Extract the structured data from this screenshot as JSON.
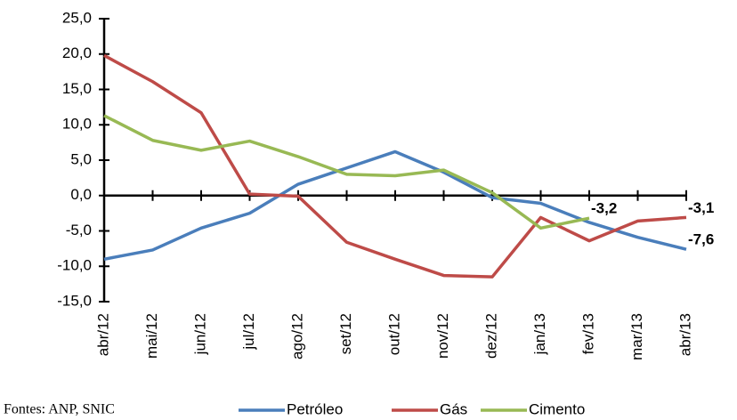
{
  "chart_data": {
    "type": "line",
    "categories": [
      "abr/12",
      "mai/12",
      "jun/12",
      "jul/12",
      "ago/12",
      "set/12",
      "out/12",
      "nov/12",
      "dez/12",
      "jan/13",
      "fev/13",
      "mar/13",
      "abr/13"
    ],
    "series": [
      {
        "name": "Petróleo",
        "color": "#4a7ebb",
        "values": [
          -9.0,
          -7.7,
          -4.6,
          -2.5,
          1.6,
          3.9,
          6.2,
          3.3,
          -0.3,
          -1.1,
          -3.8,
          -5.9,
          -7.6
        ],
        "value_labels": [
          null,
          null,
          null,
          null,
          null,
          null,
          null,
          null,
          null,
          null,
          null,
          null,
          "-7,6"
        ]
      },
      {
        "name": "Gás",
        "color": "#be4b48",
        "values": [
          19.8,
          16.1,
          11.7,
          0.2,
          -0.1,
          -6.6,
          -9.0,
          -11.3,
          -11.5,
          -3.1,
          -6.4,
          -3.6,
          -3.1
        ],
        "value_labels": [
          null,
          null,
          null,
          null,
          null,
          null,
          null,
          null,
          null,
          null,
          null,
          null,
          "-3,1"
        ]
      },
      {
        "name": "Cimento",
        "color": "#98b954",
        "values": [
          11.3,
          7.8,
          6.4,
          7.7,
          5.5,
          3.0,
          2.8,
          3.6,
          0.4,
          -4.6,
          -3.2,
          null,
          null
        ],
        "value_labels": [
          null,
          null,
          null,
          null,
          null,
          null,
          null,
          null,
          null,
          null,
          "-3,2",
          null,
          null
        ]
      }
    ],
    "ylim": [
      -15,
      25
    ],
    "yticks": [
      {
        "value": -15,
        "label": "-15,0"
      },
      {
        "value": -10,
        "label": "-10,0"
      },
      {
        "value": -5,
        "label": "-5,0"
      },
      {
        "value": 0,
        "label": "0,0"
      },
      {
        "value": 5,
        "label": "5,0"
      },
      {
        "value": 10,
        "label": "10,0"
      },
      {
        "value": 15,
        "label": "15,0"
      },
      {
        "value": 20,
        "label": "20,0"
      },
      {
        "value": 25,
        "label": "25,0"
      }
    ],
    "source": "Fontes: ANP, SNIC",
    "legend": "bottom"
  }
}
